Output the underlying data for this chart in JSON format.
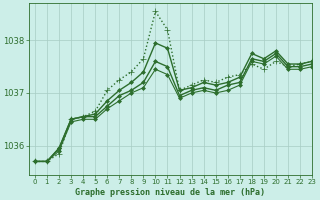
{
  "title": "Graphe pression niveau de la mer (hPa)",
  "bg_color": "#cceee8",
  "line_color": "#2d6e2d",
  "grid_color": "#a8ccc4",
  "xlim": [
    -0.5,
    23
  ],
  "ylim": [
    1035.45,
    1038.7
  ],
  "yticks": [
    1036,
    1037,
    1038
  ],
  "xticks": [
    0,
    1,
    2,
    3,
    4,
    5,
    6,
    7,
    8,
    9,
    10,
    11,
    12,
    13,
    14,
    15,
    16,
    17,
    18,
    19,
    20,
    21,
    22,
    23
  ],
  "series": [
    {
      "y": [
        1035.7,
        1035.7,
        1035.85,
        1036.5,
        1036.55,
        1036.65,
        1037.05,
        1037.25,
        1037.4,
        1037.65,
        1038.55,
        1038.2,
        1037.05,
        1037.15,
        1037.25,
        1037.2,
        1037.3,
        1037.35,
        1037.55,
        1037.45,
        1037.6,
        1037.5,
        1037.55,
        1037.6
      ],
      "linestyle": ":",
      "linewidth": 1.0,
      "marker": "+",
      "markersize": 4
    },
    {
      "y": [
        1035.7,
        1035.7,
        1035.95,
        1036.5,
        1036.55,
        1036.6,
        1036.85,
        1037.05,
        1037.2,
        1037.4,
        1037.95,
        1037.85,
        1037.05,
        1037.1,
        1037.2,
        1037.15,
        1037.2,
        1037.3,
        1037.75,
        1037.65,
        1037.8,
        1037.55,
        1037.55,
        1037.6
      ],
      "linestyle": "-",
      "linewidth": 1.0,
      "marker": "D",
      "markersize": 2
    },
    {
      "y": [
        1035.7,
        1035.7,
        1035.95,
        1036.5,
        1036.55,
        1036.55,
        1036.75,
        1036.95,
        1037.05,
        1037.2,
        1037.6,
        1037.5,
        1036.95,
        1037.05,
        1037.1,
        1037.05,
        1037.15,
        1037.2,
        1037.65,
        1037.6,
        1037.75,
        1037.5,
        1037.5,
        1037.55
      ],
      "linestyle": "-",
      "linewidth": 1.0,
      "marker": "D",
      "markersize": 2
    },
    {
      "y": [
        1035.7,
        1035.7,
        1035.9,
        1036.45,
        1036.5,
        1036.5,
        1036.7,
        1036.85,
        1037.0,
        1037.1,
        1037.45,
        1037.35,
        1036.9,
        1037.0,
        1037.05,
        1037.0,
        1037.05,
        1037.15,
        1037.6,
        1037.55,
        1037.7,
        1037.45,
        1037.45,
        1037.5
      ],
      "linestyle": "-",
      "linewidth": 0.8,
      "marker": "D",
      "markersize": 2
    }
  ]
}
